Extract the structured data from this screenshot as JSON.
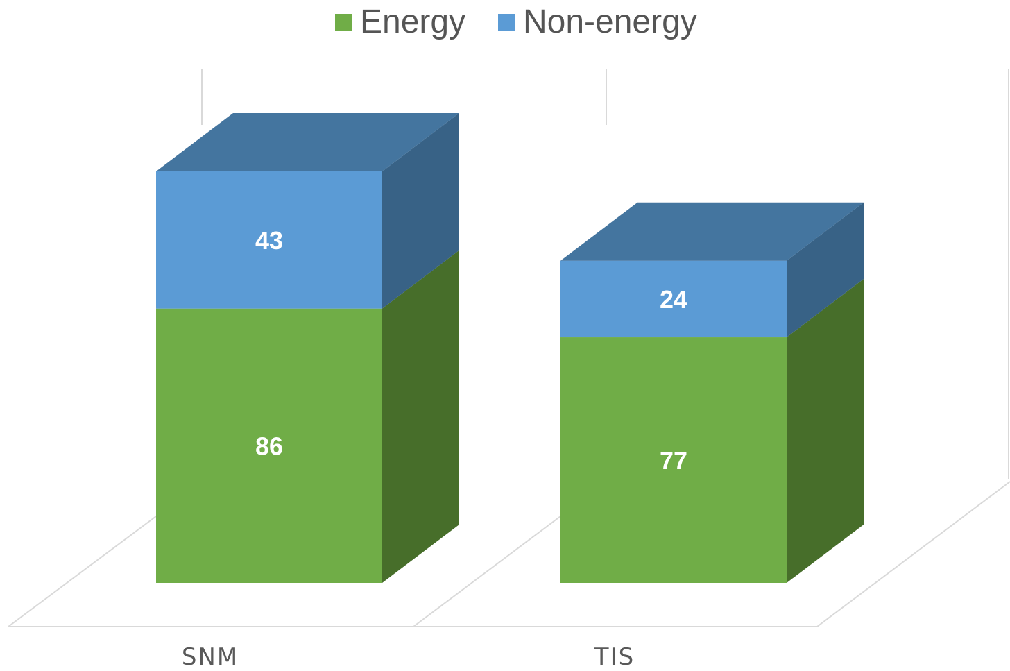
{
  "chart_data": {
    "type": "bar",
    "stacked": true,
    "three_d": true,
    "categories": [
      "SNM",
      "TIS"
    ],
    "series": [
      {
        "name": "Energy",
        "values": [
          86,
          77
        ],
        "color": "#70AD47",
        "side_color": "#476E2A"
      },
      {
        "name": "Non-energy",
        "values": [
          43,
          24
        ],
        "color": "#5B9BD5",
        "side_color": "#386286",
        "top_color": "#44759F"
      }
    ],
    "legend_position": "top",
    "data_labels": true,
    "grid": false,
    "ylim": [
      0,
      129
    ]
  }
}
